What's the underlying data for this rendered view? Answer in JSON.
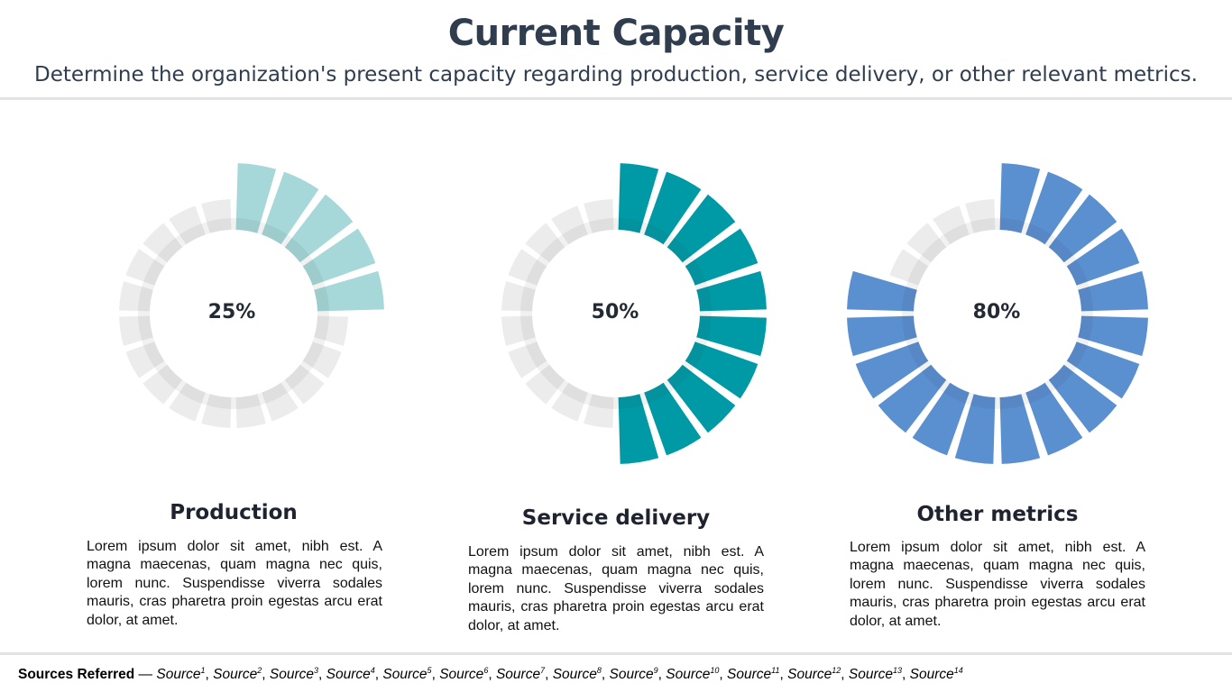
{
  "header": {
    "title": "Current Capacity",
    "subtitle": "Determine the organization's present capacity regarding production, service delivery, or other relevant metrics."
  },
  "chart_data": [
    {
      "type": "pie",
      "title": "Production",
      "values": [
        25
      ],
      "label": "25%",
      "segments": 20,
      "fill_color": "#a6d8d9",
      "track_color": "#ececec",
      "description": "Lorem ipsum dolor sit amet, nibh est. A magna maecenas, quam magna nec quis, lorem nunc. Suspendisse viverra sodales mauris, cras pharetra proin egestas arcu erat dolor, at amet."
    },
    {
      "type": "pie",
      "title": "Service delivery",
      "values": [
        50
      ],
      "label": "50%",
      "segments": 20,
      "fill_color": "#009aa6",
      "track_color": "#ececec",
      "description": "Lorem ipsum dolor sit amet, nibh est. A magna maecenas, quam magna nec quis, lorem nunc. Suspendisse viverra sodales mauris, cras pharetra proin egestas arcu erat dolor, at amet."
    },
    {
      "type": "pie",
      "title": "Other metrics",
      "values": [
        80
      ],
      "label": "80%",
      "segments": 20,
      "fill_color": "#5a8fd0",
      "track_color": "#ececec",
      "description": "Lorem ipsum dolor sit amet, nibh est. A magna maecenas, quam magna nec quis, lorem nunc. Suspendisse viverra sodales mauris, cras pharetra proin egestas arcu erat dolor, at amet."
    }
  ],
  "footer": {
    "lead": "Sources Referred",
    "dash": " — ",
    "sources": [
      {
        "text": "Source",
        "sup": "1"
      },
      {
        "text": "Source",
        "sup": "2"
      },
      {
        "text": "Source",
        "sup": "3"
      },
      {
        "text": "Source",
        "sup": "4"
      },
      {
        "text": "Source",
        "sup": "5"
      },
      {
        "text": "Source",
        "sup": "6"
      },
      {
        "text": "Source",
        "sup": "7"
      },
      {
        "text": "Source",
        "sup": "8"
      },
      {
        "text": "Source",
        "sup": "9"
      },
      {
        "text": "Source",
        "sup": "10"
      },
      {
        "text": "Source",
        "sup": "11"
      },
      {
        "text": "Source",
        "sup": "12"
      },
      {
        "text": "Source",
        "sup": "13"
      },
      {
        "text": "Source",
        "sup": "14"
      }
    ]
  }
}
